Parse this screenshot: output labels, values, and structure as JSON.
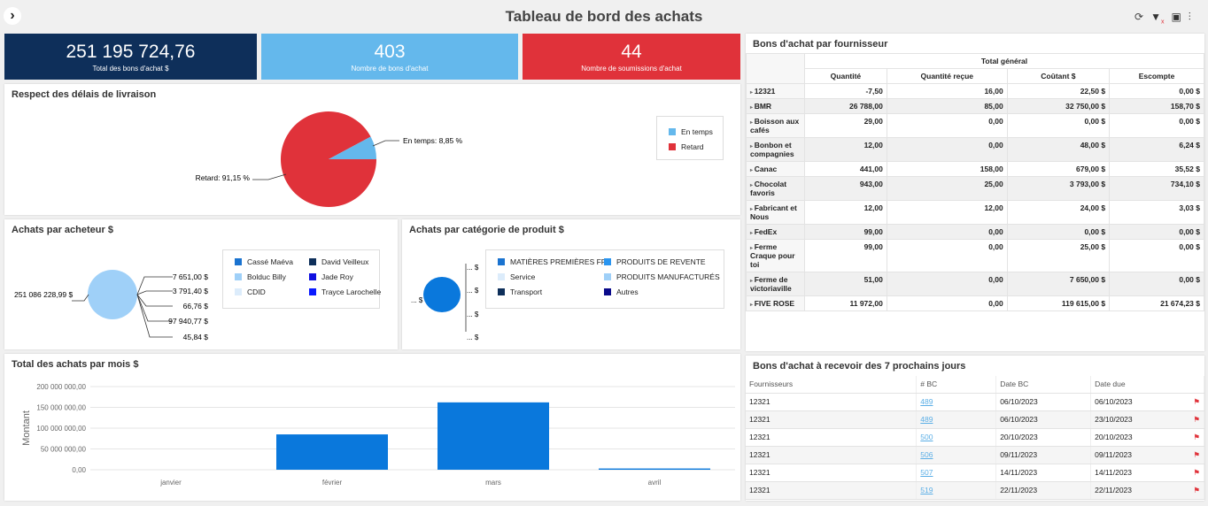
{
  "header": {
    "title": "Tableau de bord des achats"
  },
  "kpis": [
    {
      "value": "251 195 724,76",
      "label": "Total des bons d'achat $",
      "color": "#0e2f5a"
    },
    {
      "value": "403",
      "label": "Nombre de bons d'achat",
      "color": "#64b8ec"
    },
    {
      "value": "44",
      "label": "Nombre de soumissions d'achat",
      "color": "#e0323a"
    }
  ],
  "delivery": {
    "title": "Respect des délais de livraison",
    "slices": [
      {
        "name": "En temps",
        "pct": 8.85,
        "label": "En temps: 8,85 %",
        "color": "#64b8ec"
      },
      {
        "name": "Retard",
        "pct": 91.15,
        "label": "Retard: 91,15 %",
        "color": "#e0323a"
      }
    ]
  },
  "buyers": {
    "title": "Achats par acheteur $",
    "big_label": "251 086 228,99 $",
    "labels": [
      "7 651,00 $",
      "3 791,40 $",
      "66,76 $",
      "97 940,77 $",
      "45,84 $"
    ],
    "legend": [
      {
        "name": "Cassé Maéva",
        "color": "#1a73d0"
      },
      {
        "name": "David Veilleux",
        "color": "#0e2f5a"
      },
      {
        "name": "Bolduc Billy",
        "color": "#9fd0f8"
      },
      {
        "name": "Jade Roy",
        "color": "#1010e0"
      },
      {
        "name": "CDID",
        "color": "#dcecfb"
      },
      {
        "name": "Trayce Larochelle",
        "color": "#0a1aff"
      }
    ]
  },
  "categories": {
    "title": "Achats par catégorie de produit $",
    "label": "... $",
    "legend": [
      {
        "name": "MATIÈRES PREMIÈRES FR",
        "color": "#1a73d0"
      },
      {
        "name": "PRODUITS DE REVENTE",
        "color": "#2a95f0"
      },
      {
        "name": "Service",
        "color": "#dcecfb"
      },
      {
        "name": "PRODUITS MANUFACTURÉS",
        "color": "#9fd0f8"
      },
      {
        "name": "Transport",
        "color": "#0e2f5a"
      },
      {
        "name": "Autres",
        "color": "#0a0a8a"
      }
    ]
  },
  "chart_data": {
    "type": "bar",
    "title": "Total des achats par mois $",
    "categories": [
      "janvier",
      "février",
      "mars",
      "avril"
    ],
    "values": [
      0,
      85000000,
      162000000,
      3000000
    ],
    "ylabel": "Montant",
    "ylim": [
      0,
      200000000
    ],
    "yticks": [
      "0,00",
      "50 000 000,00",
      "100 000 000,00",
      "150 000 000,00",
      "200 000 000,00"
    ],
    "color": "#0a78dc"
  },
  "suppliers": {
    "title": "Bons d'achat par fournisseur",
    "group": "Total général",
    "columns": [
      "Quantité",
      "Quantité reçue",
      "Coûtant $",
      "Escompte"
    ],
    "rows": [
      [
        "12321",
        "-7,50",
        "16,00",
        "22,50 $",
        "0,00 $"
      ],
      [
        "BMR",
        "26 788,00",
        "85,00",
        "32 750,00 $",
        "158,70 $"
      ],
      [
        "Boisson aux cafés",
        "29,00",
        "0,00",
        "0,00 $",
        "0,00 $"
      ],
      [
        "Bonbon et compagnies",
        "12,00",
        "0,00",
        "48,00 $",
        "6,24 $"
      ],
      [
        "Canac",
        "441,00",
        "158,00",
        "679,00 $",
        "35,52 $"
      ],
      [
        "Chocolat favoris",
        "943,00",
        "25,00",
        "3 793,00 $",
        "734,10 $"
      ],
      [
        "Fabricant et Nous",
        "12,00",
        "12,00",
        "24,00 $",
        "3,03 $"
      ],
      [
        "FedEx",
        "99,00",
        "0,00",
        "0,00 $",
        "0,00 $"
      ],
      [
        "Ferme Craque pour toi",
        "99,00",
        "0,00",
        "25,00 $",
        "0,00 $"
      ],
      [
        "Ferme de victoriaville",
        "51,00",
        "0,00",
        "7 650,00 $",
        "0,00 $"
      ],
      [
        "FIVE ROSE",
        "11 972,00",
        "0,00",
        "119 615,00 $",
        "21 674,23 $"
      ]
    ]
  },
  "upcoming": {
    "title": "Bons d'achat à recevoir des 7 prochains jours",
    "columns": [
      "Fournisseurs",
      "# BC",
      "Date BC",
      "Date due"
    ],
    "rows": [
      [
        "12321",
        "489",
        "06/10/2023",
        "06/10/2023"
      ],
      [
        "12321",
        "489",
        "06/10/2023",
        "23/10/2023"
      ],
      [
        "12321",
        "500",
        "20/10/2023",
        "20/10/2023"
      ],
      [
        "12321",
        "506",
        "09/11/2023",
        "09/11/2023"
      ],
      [
        "12321",
        "507",
        "14/11/2023",
        "14/11/2023"
      ],
      [
        "12321",
        "519",
        "22/11/2023",
        "22/11/2023"
      ]
    ]
  }
}
